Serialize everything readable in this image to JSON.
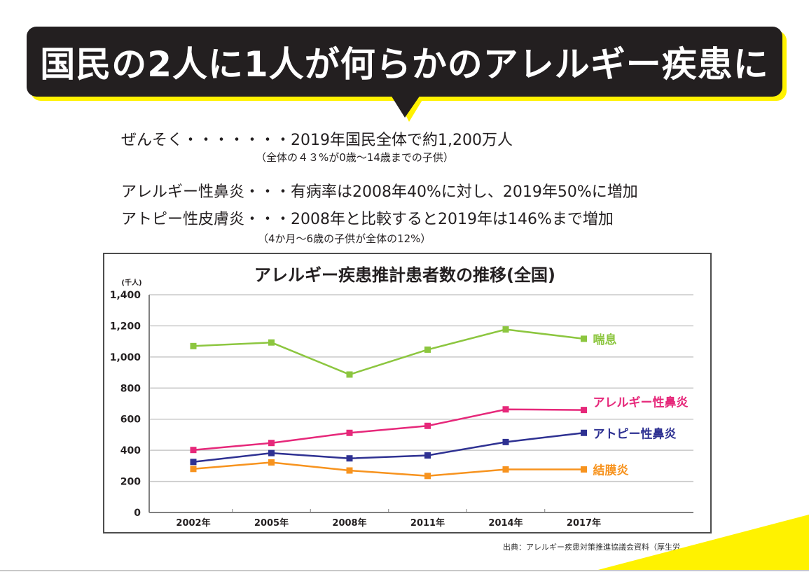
{
  "banner": {
    "title": "国民の2人に1人が何らかのアレルギー疾患に"
  },
  "stats": [
    {
      "main": "ぜんそく・・・・・・・2019年国民全体で約1,200万人",
      "sub": "（全体の４３%が0歳～14歳までの子供）"
    },
    {
      "main": "アレルギー性鼻炎・・・有病率は2008年40%に対し、2019年50%に増加"
    },
    {
      "main": "アトピー性皮膚炎・・・2008年と比較すると2019年は146%まで増加",
      "sub": "（4か月～6歳の子供が全体の12%）"
    }
  ],
  "source": "出典：アレルギー疾患対策推進協議会資料（厚生労",
  "colors": {
    "banner_bg": "#231f20",
    "banner_shadow": "#fff200",
    "asthma": "#8cc63f",
    "allergic_rhinitis": "#e6287a",
    "atopic": "#2e3192",
    "conjunctivitis": "#f7931e"
  },
  "chart_data": {
    "type": "line",
    "title": "アレルギー疾患推計患者数の推移(全国)",
    "ylabel": "(千人)",
    "xlabel": "",
    "categories": [
      "2002年",
      "2005年",
      "2008年",
      "2011年",
      "2014年",
      "2017年"
    ],
    "ylim": [
      0,
      1400
    ],
    "yticks": [
      0,
      200,
      400,
      600,
      800,
      1000,
      1200,
      1400
    ],
    "ytick_labels": [
      "0",
      "200",
      "400",
      "600",
      "800",
      "1,000",
      "1,200",
      "1,400"
    ],
    "grid": true,
    "legend": "right (inline labels at line ends)",
    "series": [
      {
        "name": "喘息",
        "color": "#8cc63f",
        "values": [
          1070,
          1093,
          887,
          1047,
          1177,
          1117
        ]
      },
      {
        "name": "アレルギー性鼻炎",
        "color": "#e6287a",
        "values": [
          402,
          447,
          512,
          557,
          663,
          659
        ]
      },
      {
        "name": "アトピー性鼻炎",
        "color": "#2e3192",
        "values": [
          325,
          382,
          348,
          367,
          453,
          512
        ]
      },
      {
        "name": "結膜炎",
        "color": "#f7931e",
        "values": [
          280,
          322,
          270,
          235,
          277,
          277
        ]
      }
    ]
  }
}
